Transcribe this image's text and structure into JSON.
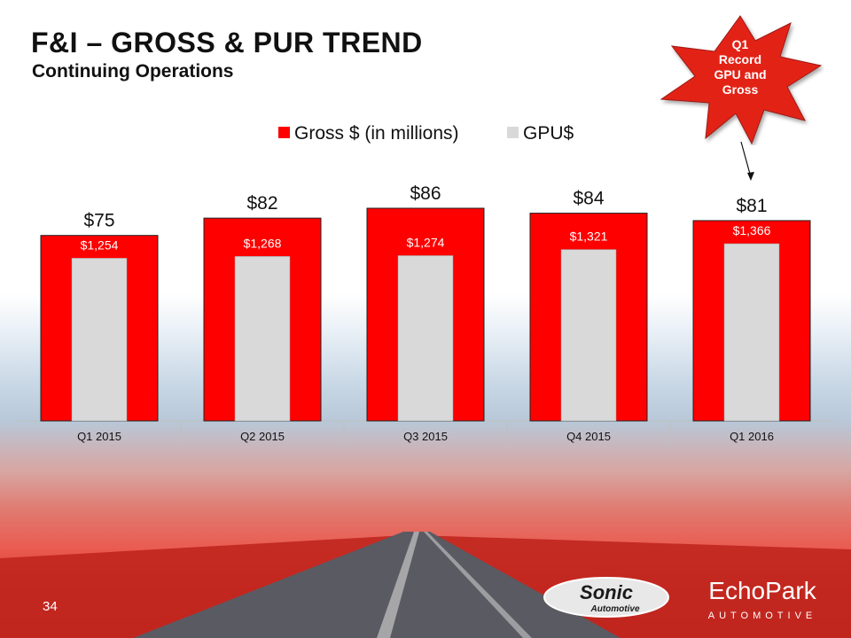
{
  "slide": {
    "title": "F&I – GROSS & PUR TREND",
    "subtitle": "Continuing Operations",
    "page_number": "34",
    "callout": {
      "line1": "Q1",
      "line2": "Record",
      "line3": "GPU and",
      "line4": "Gross"
    },
    "logos": {
      "sonic": {
        "name": "Sonic",
        "sub": "Automotive"
      },
      "echopark": {
        "name": "EchoPark",
        "sub": "AUTOMOTIVE"
      }
    }
  },
  "colors": {
    "gross": "#ff0000",
    "gpu": "#d9d9d9",
    "callout": "#e32219"
  },
  "chart_data": {
    "type": "bar",
    "categories": [
      "Q1 2015",
      "Q2 2015",
      "Q3 2015",
      "Q4 2015",
      "Q1 2016"
    ],
    "series": [
      {
        "name": "Gross $ (in millions)",
        "values": [
          75,
          82,
          86,
          84,
          81
        ],
        "labels": [
          "$75",
          "$82",
          "$86",
          "$84",
          "$81"
        ]
      },
      {
        "name": "GPU$",
        "values": [
          1254,
          1268,
          1274,
          1321,
          1366
        ],
        "labels": [
          "$1,254",
          "$1,268",
          "$1,274",
          "$1,321",
          "$1,366"
        ]
      }
    ],
    "legend_position": "top",
    "title": "",
    "xlabel": "",
    "ylabel": ""
  }
}
